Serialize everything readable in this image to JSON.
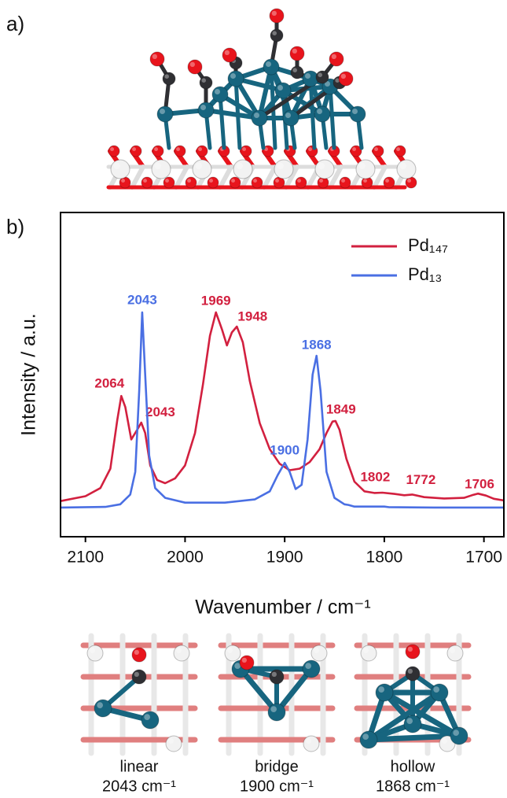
{
  "panel_labels": [
    "a)",
    "b)"
  ],
  "chart_data": {
    "type": "line",
    "xlabel": "Wavenumber / cm⁻¹",
    "ylabel": "Intensity / a.u.",
    "xlim": [
      2125,
      1680
    ],
    "xticks": [
      2100,
      2000,
      1900,
      1800,
      1700
    ],
    "ylim": [
      0,
      1
    ],
    "legend": "upper right",
    "series": [
      {
        "name": "Pd₁₄₇",
        "color": "#d2203f",
        "x": [
          2125,
          2100,
          2085,
          2075,
          2068,
          2064,
          2060,
          2054,
          2048,
          2044,
          2040,
          2035,
          2028,
          2020,
          2010,
          2000,
          1990,
          1982,
          1975,
          1969,
          1963,
          1958,
          1953,
          1948,
          1942,
          1935,
          1925,
          1915,
          1905,
          1895,
          1885,
          1875,
          1865,
          1858,
          1852,
          1849,
          1845,
          1838,
          1830,
          1820,
          1810,
          1802,
          1790,
          1780,
          1772,
          1760,
          1740,
          1720,
          1712,
          1706,
          1698,
          1690,
          1680
        ],
        "values": [
          0.11,
          0.125,
          0.15,
          0.21,
          0.36,
          0.434,
          0.4,
          0.3,
          0.33,
          0.352,
          0.32,
          0.22,
          0.175,
          0.165,
          0.18,
          0.22,
          0.32,
          0.47,
          0.62,
          0.692,
          0.64,
          0.59,
          0.63,
          0.648,
          0.6,
          0.48,
          0.35,
          0.27,
          0.225,
          0.205,
          0.21,
          0.23,
          0.27,
          0.32,
          0.355,
          0.357,
          0.33,
          0.24,
          0.17,
          0.14,
          0.135,
          0.136,
          0.132,
          0.128,
          0.13,
          0.122,
          0.118,
          0.12,
          0.128,
          0.133,
          0.127,
          0.117,
          0.112
        ],
        "peaks": [
          2064,
          2043,
          1969,
          1948,
          1849,
          1802,
          1772,
          1706
        ]
      },
      {
        "name": "Pd₁₃",
        "color": "#4a6fe3",
        "x": [
          2125,
          2080,
          2065,
          2055,
          2050,
          2046,
          2043,
          2040,
          2036,
          2030,
          2020,
          2000,
          1960,
          1930,
          1915,
          1907,
          1900,
          1895,
          1889,
          1883,
          1877,
          1872,
          1868,
          1864,
          1858,
          1850,
          1840,
          1836,
          1830,
          1800,
          1795,
          1750,
          1680
        ],
        "values": [
          0.09,
          0.092,
          0.1,
          0.13,
          0.2,
          0.45,
          0.692,
          0.5,
          0.25,
          0.15,
          0.12,
          0.105,
          0.105,
          0.115,
          0.14,
          0.19,
          0.228,
          0.2,
          0.147,
          0.16,
          0.3,
          0.5,
          0.558,
          0.45,
          0.2,
          0.12,
          0.1,
          0.098,
          0.093,
          0.093,
          0.091,
          0.09,
          0.09
        ],
        "peaks": [
          2043,
          1900,
          1868
        ]
      }
    ]
  },
  "sites": [
    {
      "name": "linear",
      "frequency": "2043 cm⁻¹"
    },
    {
      "name": "bridge",
      "frequency": "1900 cm⁻¹"
    },
    {
      "name": "hollow",
      "frequency": "1868 cm⁻¹"
    }
  ]
}
